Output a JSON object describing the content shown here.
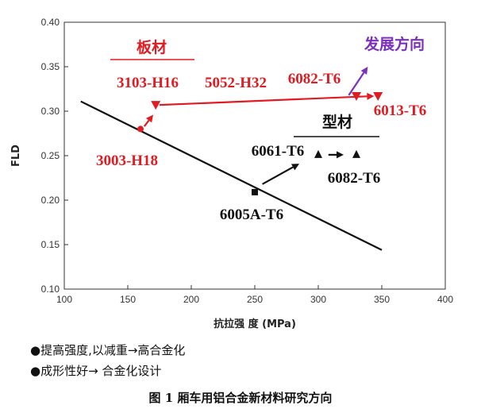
{
  "chart_data": {
    "type": "scatter",
    "xlabel": "抗拉强 度 (MPa)",
    "ylabel": "FLD",
    "xlim": [
      100,
      400
    ],
    "ylim": [
      0.1,
      0.4
    ],
    "xticks": [
      "100",
      "150",
      "200",
      "250",
      "300",
      "350",
      "400"
    ],
    "yticks": [
      "0.10",
      "0.15",
      "0.20",
      "0.25",
      "0.30",
      "0.35",
      "0.40"
    ],
    "grid": false,
    "trend_line": {
      "x": [
        113,
        350
      ],
      "y": [
        0.311,
        0.144
      ]
    },
    "points": [
      {
        "x": 160,
        "y": 0.28,
        "marker": "circle",
        "color": "#e11b22"
      },
      {
        "x": 172,
        "y": 0.307,
        "marker": "triangle-down",
        "color": "#e11b22"
      },
      {
        "x": 330,
        "y": 0.317,
        "marker": "triangle-down",
        "color": "#e11b22"
      },
      {
        "x": 347,
        "y": 0.317,
        "marker": "triangle-down",
        "color": "#e11b22"
      },
      {
        "x": 300,
        "y": 0.251,
        "marker": "triangle-up",
        "color": "#111111"
      },
      {
        "x": 330,
        "y": 0.251,
        "marker": "triangle-up",
        "color": "#111111"
      },
      {
        "x": 250,
        "y": 0.209,
        "marker": "square",
        "color": "#111111"
      }
    ],
    "annotations": [
      {
        "text": "板材",
        "color": "#e11b22",
        "cjk": true,
        "underline": true
      },
      {
        "text": "3103-H16",
        "color": "#e11b22"
      },
      {
        "text": "5052-H32",
        "color": "#e11b22"
      },
      {
        "text": "6082-T6",
        "color": "#e11b22"
      },
      {
        "text": "6013-T6",
        "color": "#e11b22"
      },
      {
        "text": "3003-H18",
        "color": "#e11b22"
      },
      {
        "text": "发展方向",
        "color": "#7b2fbf",
        "cjk": true
      },
      {
        "text": "型材",
        "color": "#111111",
        "cjk": true,
        "underline": true
      },
      {
        "text": "6061-T6",
        "color": "#111111"
      },
      {
        "text": "6082-T6",
        "color": "#111111"
      },
      {
        "text": "6005A-T6",
        "color": "#111111"
      }
    ],
    "arrows": [
      {
        "from": [
          163,
          0.283
        ],
        "to": [
          170,
          0.296
        ],
        "color": "#e11b22"
      },
      {
        "from": [
          175,
          0.307
        ],
        "to": [
          344,
          0.317
        ],
        "color": "#e11b22"
      },
      {
        "from": [
          324,
          0.318
        ],
        "to": [
          339,
          0.35
        ],
        "color": "#7b2fbf"
      },
      {
        "from": [
          256,
          0.218
        ],
        "to": [
          285,
          0.241
        ],
        "color": "#111111"
      },
      {
        "from": [
          308,
          0.251
        ],
        "to": [
          320,
          0.251
        ],
        "color": "#111111"
      }
    ]
  },
  "bullets": [
    "●提高强度,以减重→高合金化",
    "●成形性好→ 合金化设计"
  ],
  "caption": "图 1  厢车用铝合金新材料研究方向"
}
